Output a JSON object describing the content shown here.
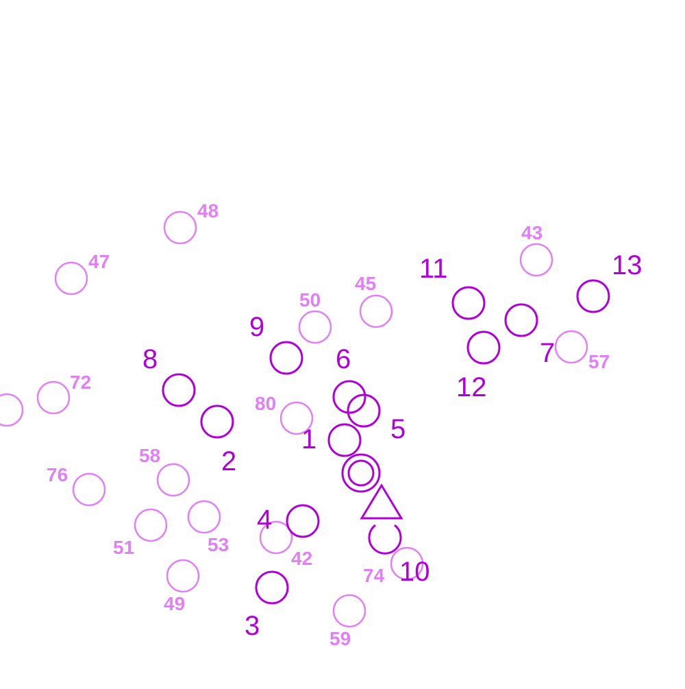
{
  "colors": {
    "primary": "#b000d8",
    "secondary": "#e080f4",
    "background": "#ffffff"
  },
  "primary_markers": [
    {
      "label": "1"
    },
    {
      "label": "2"
    },
    {
      "label": "3"
    },
    {
      "label": "4"
    },
    {
      "label": "5"
    },
    {
      "label": "6"
    },
    {
      "label": "7"
    },
    {
      "label": "8"
    },
    {
      "label": "9"
    },
    {
      "label": "10"
    },
    {
      "label": "11"
    },
    {
      "label": "12"
    },
    {
      "label": "13"
    }
  ],
  "secondary_markers": [
    {
      "label": "42"
    },
    {
      "label": "43"
    },
    {
      "label": "45"
    },
    {
      "label": "47"
    },
    {
      "label": "48"
    },
    {
      "label": "49"
    },
    {
      "label": "50"
    },
    {
      "label": "51"
    },
    {
      "label": "53"
    },
    {
      "label": "57"
    },
    {
      "label": "58"
    },
    {
      "label": "59"
    },
    {
      "label": "72"
    },
    {
      "label": "74"
    },
    {
      "label": "76"
    },
    {
      "label": "80"
    }
  ],
  "start_marker": {
    "name": "double-circle"
  },
  "goal_marker": {
    "name": "triangle"
  }
}
